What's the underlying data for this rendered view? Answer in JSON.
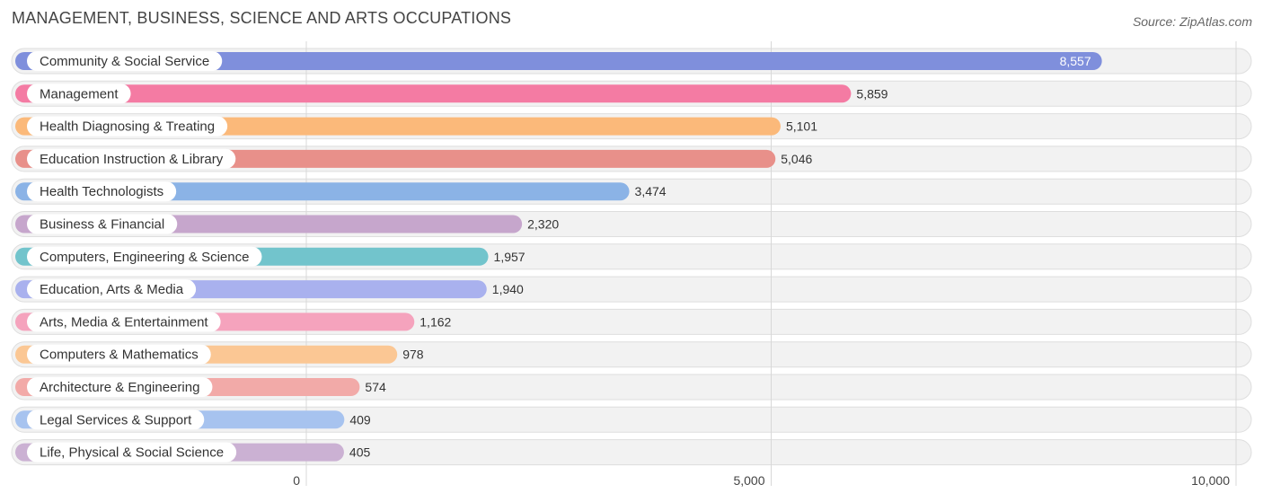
{
  "header": {
    "title": "MANAGEMENT, BUSINESS, SCIENCE AND ARTS OCCUPATIONS",
    "source": "Source: ZipAtlas.com"
  },
  "chart_data": {
    "type": "bar",
    "orientation": "horizontal",
    "title": "MANAGEMENT, BUSINESS, SCIENCE AND ARTS OCCUPATIONS",
    "xlim": [
      0,
      10000
    ],
    "x_ticks": [
      0,
      5000,
      10000
    ],
    "x_tick_labels": [
      "0",
      "5,000",
      "10,000"
    ],
    "grid": true,
    "categories": [
      "Community & Social Service",
      "Management",
      "Health Diagnosing & Treating",
      "Education Instruction & Library",
      "Health Technologists",
      "Business & Financial",
      "Computers, Engineering & Science",
      "Education, Arts & Media",
      "Arts, Media & Entertainment",
      "Computers & Mathematics",
      "Architecture & Engineering",
      "Legal Services & Support",
      "Life, Physical & Social Science"
    ],
    "values": [
      8557,
      5859,
      5101,
      5046,
      3474,
      2320,
      1957,
      1940,
      1162,
      978,
      574,
      409,
      405
    ],
    "value_labels": [
      "8,557",
      "5,859",
      "5,101",
      "5,046",
      "3,474",
      "2,320",
      "1,957",
      "1,940",
      "1,162",
      "978",
      "574",
      "409",
      "405"
    ],
    "colors": [
      "#7f8fdc",
      "#f47ba3",
      "#fbb97a",
      "#e8908a",
      "#8bb3e6",
      "#c6a6cc",
      "#72c4cc",
      "#a9b1ee",
      "#f5a3bd",
      "#fbc794",
      "#f2aaa8",
      "#a7c3ef",
      "#cbb1d3"
    ]
  }
}
